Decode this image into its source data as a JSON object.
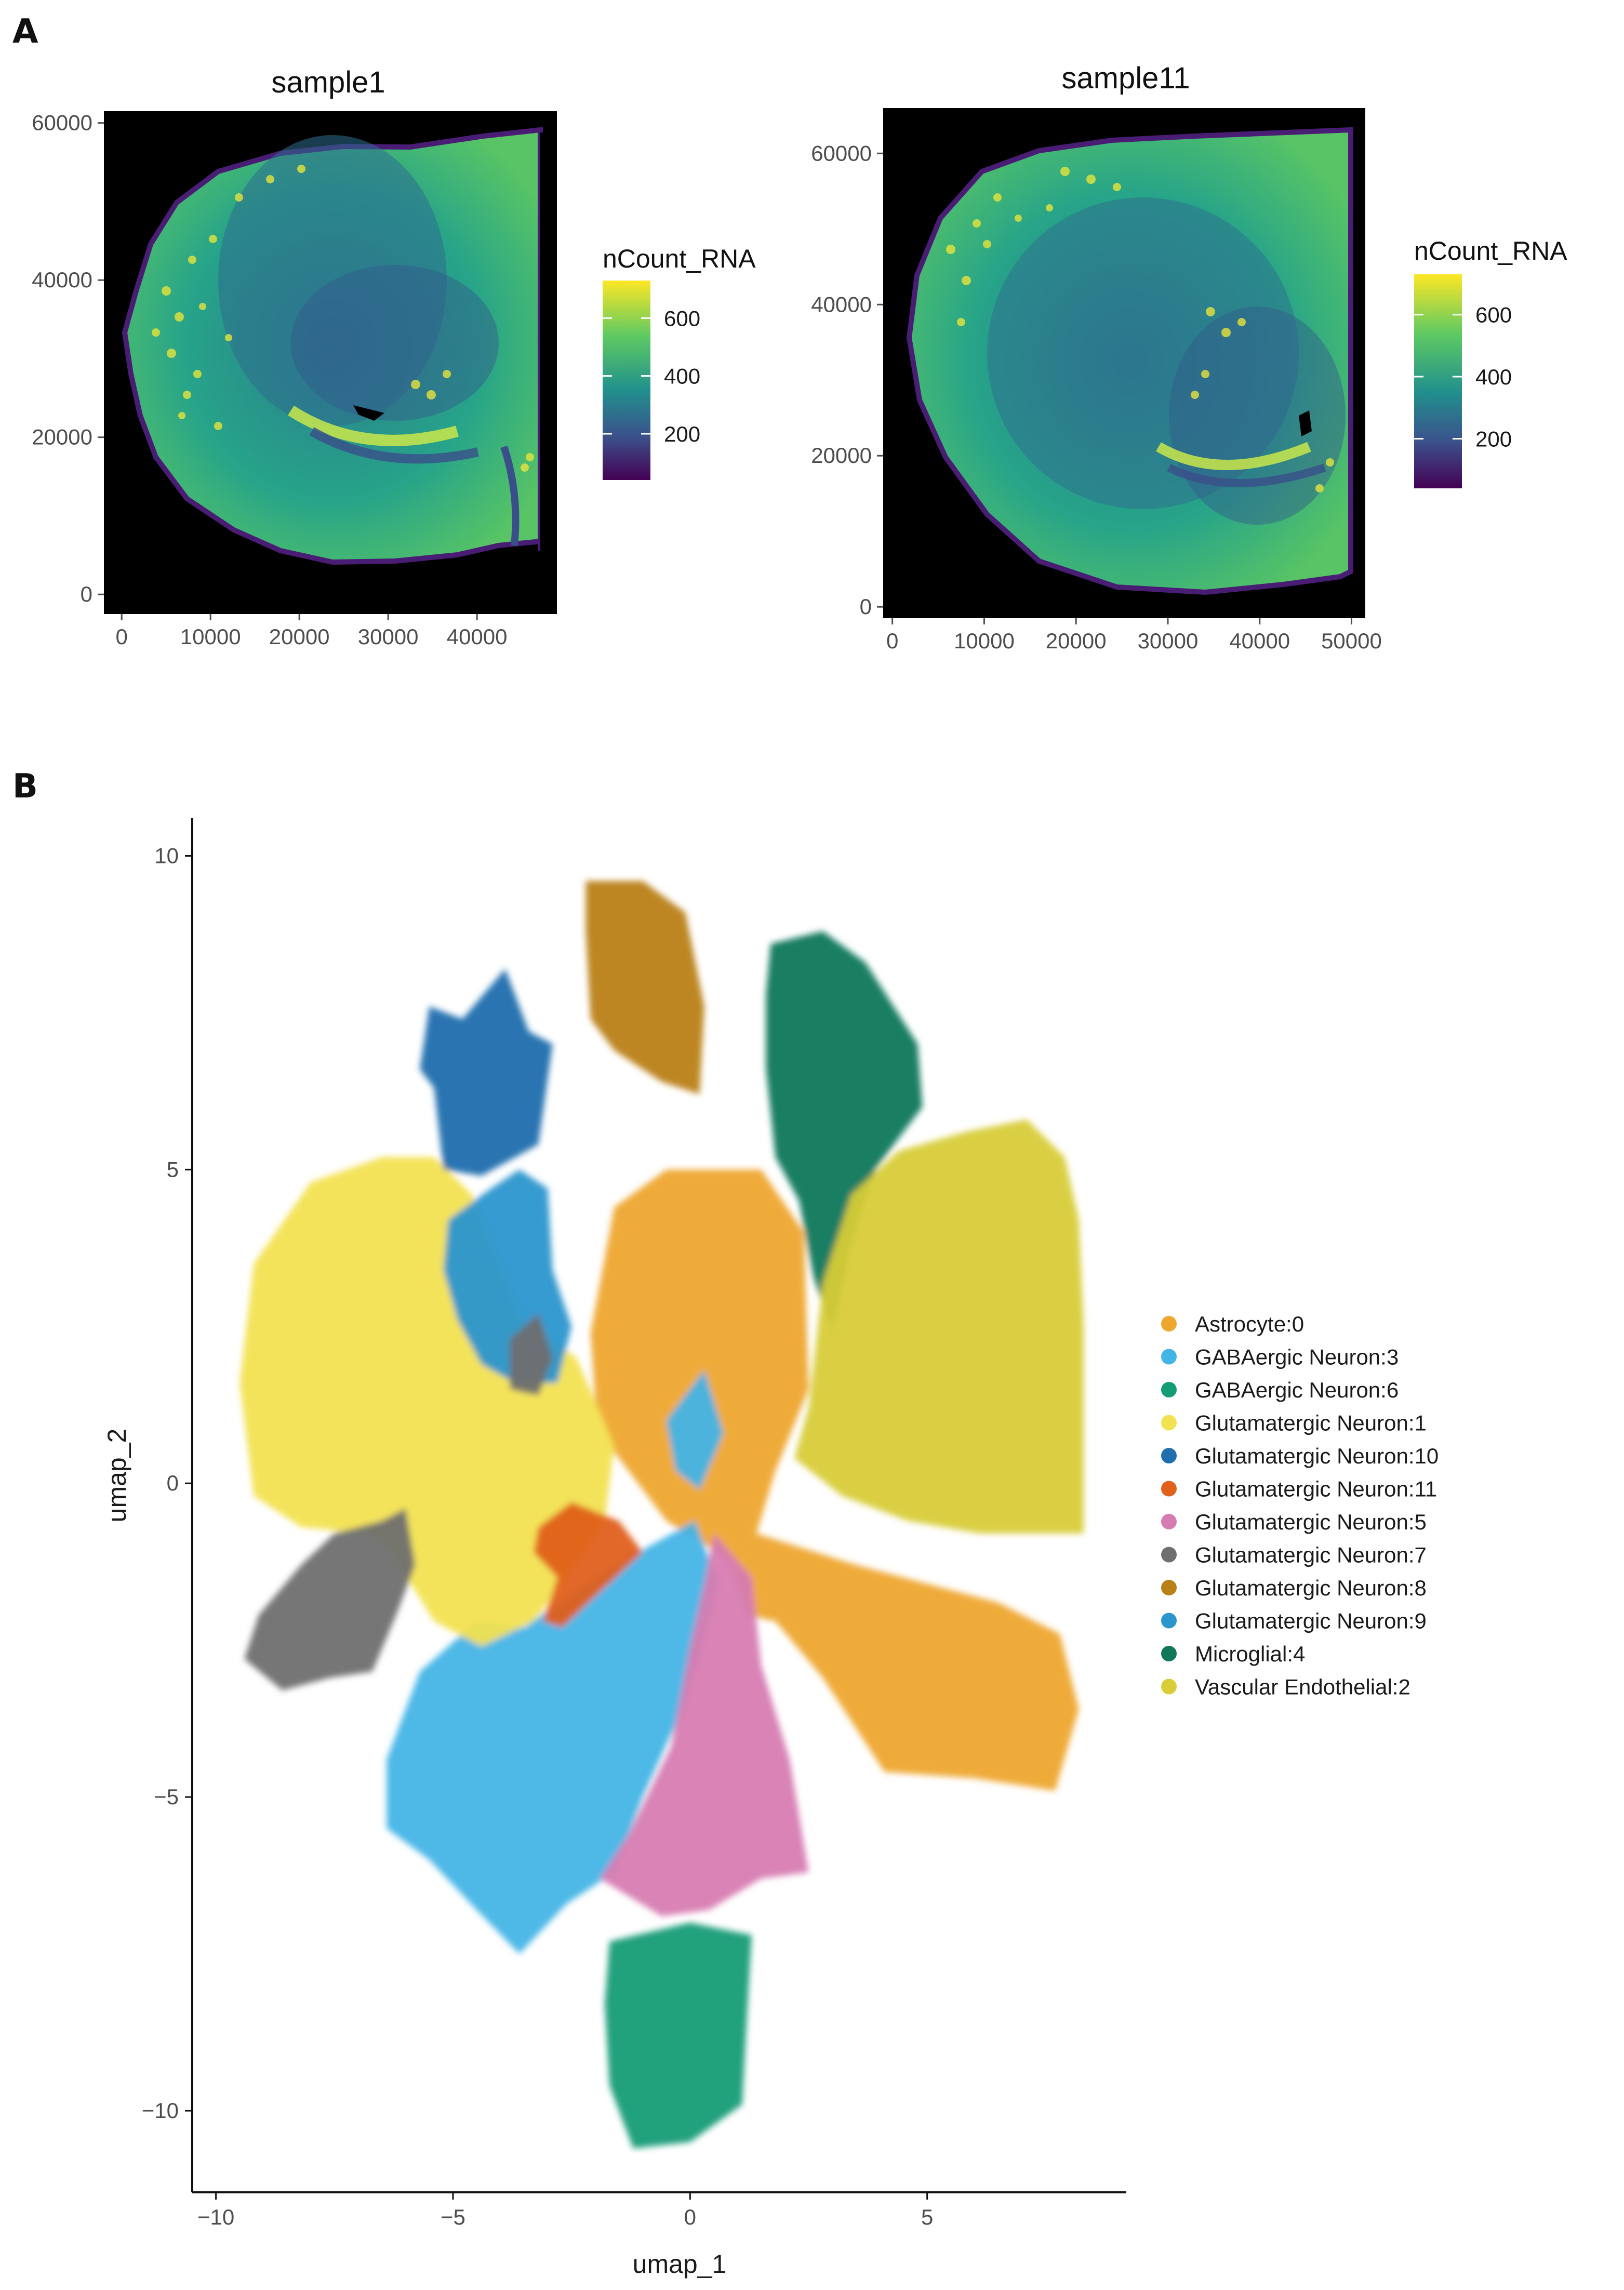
{
  "panelA": {
    "letter": "A",
    "colorbar": {
      "title": "nCount_RNA",
      "ticks": [
        200,
        400,
        600
      ],
      "range": [
        40,
        730
      ],
      "colormap": "viridis",
      "colors": [
        "#440154",
        "#3b528b",
        "#21908d",
        "#5dc963",
        "#fde725"
      ]
    },
    "background": "#000000",
    "plots": [
      {
        "title": "sample1",
        "xlim": [
          -2000,
          49000
        ],
        "ylim": [
          -2500,
          61500
        ],
        "xticks": [
          0,
          10000,
          20000,
          30000,
          40000
        ],
        "yticks": [
          0,
          20000,
          40000,
          60000
        ],
        "xtick_labels": [
          "0",
          "10000",
          "20000",
          "30000",
          "40000"
        ],
        "ytick_labels": [
          "0",
          "20000",
          "40000",
          "60000"
        ]
      },
      {
        "title": "sample11",
        "xlim": [
          -1000,
          51500
        ],
        "ylim": [
          -1500,
          66000
        ],
        "xticks": [
          0,
          10000,
          20000,
          30000,
          40000,
          50000
        ],
        "yticks": [
          0,
          20000,
          40000,
          60000
        ],
        "xtick_labels": [
          "0",
          "10000",
          "20000",
          "30000",
          "40000",
          "50000"
        ],
        "ytick_labels": [
          "0",
          "20000",
          "40000",
          "60000"
        ]
      }
    ]
  },
  "panelB": {
    "letter": "B",
    "xlabel": "umap_1",
    "ylabel": "umap_2"
  },
  "chart_data": [
    {
      "type": "heatmap",
      "title": "sample1",
      "description_of_values": "spatial spots colored by nCount_RNA",
      "x_range": [
        -2000,
        49000
      ],
      "y_range": [
        -2500,
        61500
      ],
      "color_scale": {
        "label": "nCount_RNA",
        "ticks": [
          200,
          400,
          600
        ],
        "range": [
          40,
          730
        ]
      }
    },
    {
      "type": "heatmap",
      "title": "sample11",
      "x_range": [
        -1000,
        51500
      ],
      "y_range": [
        -1500,
        66000
      ],
      "color_scale": {
        "label": "nCount_RNA",
        "ticks": [
          200,
          400,
          600
        ],
        "range": [
          40,
          730
        ]
      }
    },
    {
      "type": "scatter",
      "xlabel": "umap_1",
      "ylabel": "umap_2",
      "xlim": [
        -10.5,
        9.2
      ],
      "ylim": [
        -11.3,
        10.6
      ],
      "xticks": [
        -10,
        -5,
        0,
        5
      ],
      "yticks": [
        -10,
        -5,
        0,
        5,
        10
      ],
      "xtick_labels": [
        "−10",
        "−5",
        "0",
        "5"
      ],
      "ytick_labels": [
        "−10",
        "−5",
        "0",
        "5",
        "10"
      ],
      "legend_position": "right",
      "series": [
        {
          "name": "Astrocyte:0",
          "color": "#eea72e",
          "polygons": [
            [
              [
                -2.1,
                2.4
              ],
              [
                -1.6,
                4.4
              ],
              [
                -0.5,
                5
              ],
              [
                1.5,
                5
              ],
              [
                2.4,
                4
              ],
              [
                2.5,
                1.5
              ],
              [
                1.8,
                0.2
              ],
              [
                1.4,
                -0.8
              ],
              [
                3.5,
                -1.3
              ],
              [
                6.5,
                -1.9
              ],
              [
                7.8,
                -2.4
              ],
              [
                8.2,
                -3.6
              ],
              [
                7.7,
                -4.9
              ],
              [
                6,
                -4.7
              ],
              [
                4.1,
                -4.6
              ],
              [
                2.8,
                -3.1
              ],
              [
                1.8,
                -2.2
              ],
              [
                1.2,
                -2.1
              ],
              [
                0.8,
                -1.2
              ],
              [
                -0.5,
                -0.6
              ],
              [
                -1.6,
                0.5
              ],
              [
                -2.0,
                1.3
              ]
            ]
          ]
        },
        {
          "name": "GABAergic Neuron:3",
          "color": "#43b4e6",
          "polygons": [
            [
              [
                -2.6,
                -1.8
              ],
              [
                -1.1,
                -1.1
              ],
              [
                0.1,
                -0.6
              ],
              [
                0.6,
                -1.6
              ],
              [
                -0.1,
                -3.5
              ],
              [
                -1.0,
                -5.0
              ],
              [
                -1.6,
                -6.2
              ],
              [
                -2.6,
                -6.7
              ],
              [
                -3.6,
                -7.5
              ],
              [
                -4.5,
                -6.8
              ],
              [
                -5.5,
                -6.0
              ],
              [
                -6.4,
                -5.5
              ],
              [
                -6.4,
                -4.4
              ],
              [
                -5.7,
                -3.0
              ],
              [
                -4.5,
                -2.2
              ],
              [
                -3.5,
                -2.3
              ]
            ]
          ]
        },
        {
          "name": "GABAergic Neuron:6",
          "color": "#149c76",
          "polygons": [
            [
              [
                -1.7,
                -7.3
              ],
              [
                0.0,
                -7.0
              ],
              [
                1.3,
                -7.2
              ],
              [
                1.2,
                -8.5
              ],
              [
                1.1,
                -9.9
              ],
              [
                0.0,
                -10.5
              ],
              [
                -1.2,
                -10.6
              ],
              [
                -1.7,
                -9.6
              ],
              [
                -1.8,
                -8.3
              ]
            ]
          ]
        },
        {
          "name": "Glutamatergic Neuron:1",
          "color": "#f2e151",
          "polygons": [
            [
              [
                -5.4,
                5.2
              ],
              [
                -4.6,
                4.6
              ],
              [
                -3.6,
                2.7
              ],
              [
                -2.4,
                2.0
              ],
              [
                -1.6,
                0.6
              ],
              [
                -1.8,
                -0.6
              ],
              [
                -2.6,
                -1.5
              ],
              [
                -3.3,
                -2.2
              ],
              [
                -4.4,
                -2.6
              ],
              [
                -5.4,
                -2.2
              ],
              [
                -6.3,
                -1.1
              ],
              [
                -6.8,
                -0.8
              ],
              [
                -8.2,
                -0.7
              ],
              [
                -9.2,
                -0.2
              ],
              [
                -9.5,
                1.6
              ],
              [
                -9.2,
                3.5
              ],
              [
                -8.0,
                4.8
              ],
              [
                -6.5,
                5.2
              ]
            ]
          ]
        },
        {
          "name": "Glutamatergic Neuron:10",
          "color": "#1f6ead",
          "polygons": [
            [
              [
                -5.5,
                7.6
              ],
              [
                -4.8,
                7.4
              ],
              [
                -3.9,
                8.2
              ],
              [
                -3.4,
                7.2
              ],
              [
                -2.9,
                7.0
              ],
              [
                -3.2,
                5.4
              ],
              [
                -4.4,
                4.9
              ],
              [
                -5.2,
                5.0
              ],
              [
                -5.4,
                6.3
              ],
              [
                -5.7,
                6.6
              ]
            ]
          ]
        },
        {
          "name": "Glutamatergic Neuron:11",
          "color": "#e0601c",
          "polygons": [
            [
              [
                -3.2,
                -0.7
              ],
              [
                -2.5,
                -0.3
              ],
              [
                -1.5,
                -0.6
              ],
              [
                -1.0,
                -1.1
              ],
              [
                -2.0,
                -1.8
              ],
              [
                -2.7,
                -2.3
              ],
              [
                -3.1,
                -2.2
              ],
              [
                -2.8,
                -1.5
              ],
              [
                -3.3,
                -1.1
              ]
            ]
          ]
        },
        {
          "name": "Glutamatergic Neuron:5",
          "color": "#d77cb2",
          "polygons": [
            [
              [
                0.5,
                -0.8
              ],
              [
                1.3,
                -1.5
              ],
              [
                1.5,
                -2.9
              ],
              [
                2.1,
                -4.4
              ],
              [
                2.5,
                -6.2
              ],
              [
                1.5,
                -6.3
              ],
              [
                0.4,
                -6.8
              ],
              [
                -0.6,
                -6.9
              ],
              [
                -1.9,
                -6.3
              ],
              [
                -1.3,
                -5.6
              ],
              [
                -0.4,
                -4.2
              ],
              [
                0.0,
                -2.6
              ],
              [
                0.3,
                -1.6
              ]
            ]
          ]
        },
        {
          "name": "Glutamatergic Neuron:7",
          "color": "#6f6f6f",
          "polygons": [
            [
              [
                -6.0,
                -0.4
              ],
              [
                -6.5,
                -0.6
              ],
              [
                -7.5,
                -0.8
              ],
              [
                -8.2,
                -1.3
              ],
              [
                -9.1,
                -2.1
              ],
              [
                -9.4,
                -2.8
              ],
              [
                -8.6,
                -3.3
              ],
              [
                -7.6,
                -3.1
              ],
              [
                -6.7,
                -3.0
              ],
              [
                -6.2,
                -2.1
              ],
              [
                -5.8,
                -1.3
              ]
            ]
          ]
        },
        {
          "name": "Glutamatergic Neuron:8",
          "color": "#b98017",
          "polygons": [
            [
              [
                -2.2,
                9.6
              ],
              [
                -1.0,
                9.6
              ],
              [
                -0.1,
                9.1
              ],
              [
                0.3,
                7.6
              ],
              [
                0.2,
                6.2
              ],
              [
                -0.6,
                6.4
              ],
              [
                -1.6,
                6.9
              ],
              [
                -2.1,
                7.4
              ],
              [
                -2.2,
                8.8
              ]
            ]
          ]
        },
        {
          "name": "Glutamatergic Neuron:9",
          "color": "#2b96ce",
          "polygons": [
            [
              [
                -5.1,
                4.2
              ],
              [
                -4.2,
                4.7
              ],
              [
                -3.6,
                5.0
              ],
              [
                -3.0,
                4.7
              ],
              [
                -2.9,
                3.4
              ],
              [
                -2.5,
                2.5
              ],
              [
                -2.8,
                1.6
              ],
              [
                -3.7,
                1.6
              ],
              [
                -4.4,
                1.9
              ],
              [
                -4.9,
                2.6
              ],
              [
                -5.2,
                3.4
              ]
            ]
          ]
        },
        {
          "name": "Microglial:4",
          "color": "#11775b",
          "polygons": [
            [
              [
                1.7,
                8.6
              ],
              [
                2.8,
                8.8
              ],
              [
                3.7,
                8.3
              ],
              [
                4.8,
                7.0
              ],
              [
                4.9,
                6.0
              ],
              [
                3.9,
                5.0
              ],
              [
                3.4,
                3.8
              ],
              [
                3.0,
                2.4
              ],
              [
                2.6,
                3.3
              ],
              [
                2.3,
                4.5
              ],
              [
                1.8,
                5.2
              ],
              [
                1.6,
                6.6
              ],
              [
                1.6,
                7.8
              ]
            ]
          ]
        },
        {
          "name": "Vascular Endothelial:2",
          "color": "#d8cc38",
          "polygons": [
            [
              [
                2.5,
                1.2
              ],
              [
                2.8,
                3.2
              ],
              [
                3.4,
                4.6
              ],
              [
                4.4,
                5.3
              ],
              [
                5.8,
                5.6
              ],
              [
                7.1,
                5.8
              ],
              [
                7.9,
                5.2
              ],
              [
                8.2,
                4.2
              ],
              [
                8.3,
                2.5
              ],
              [
                8.3,
                -0.8
              ],
              [
                7.4,
                -0.8
              ],
              [
                6.1,
                -0.8
              ],
              [
                4.6,
                -0.6
              ],
              [
                3.2,
                -0.2
              ],
              [
                2.2,
                0.4
              ]
            ]
          ]
        },
        {
          "name": "GABAergic Neuron:3",
          "color": "#43b4e6",
          "legend": false,
          "polygons": [
            [
              [
                -0.5,
                1.0
              ],
              [
                0.3,
                1.8
              ],
              [
                0.7,
                0.8
              ],
              [
                0.2,
                -0.1
              ],
              [
                -0.3,
                0.2
              ]
            ]
          ]
        },
        {
          "name": "Glutamatergic Neuron:7",
          "color": "#6f6f6f",
          "legend": false,
          "polygons": [
            [
              [
                -3.8,
                2.3
              ],
              [
                -3.2,
                2.7
              ],
              [
                -2.9,
                2.0
              ],
              [
                -3.2,
                1.4
              ],
              [
                -3.8,
                1.5
              ]
            ]
          ]
        }
      ]
    }
  ]
}
